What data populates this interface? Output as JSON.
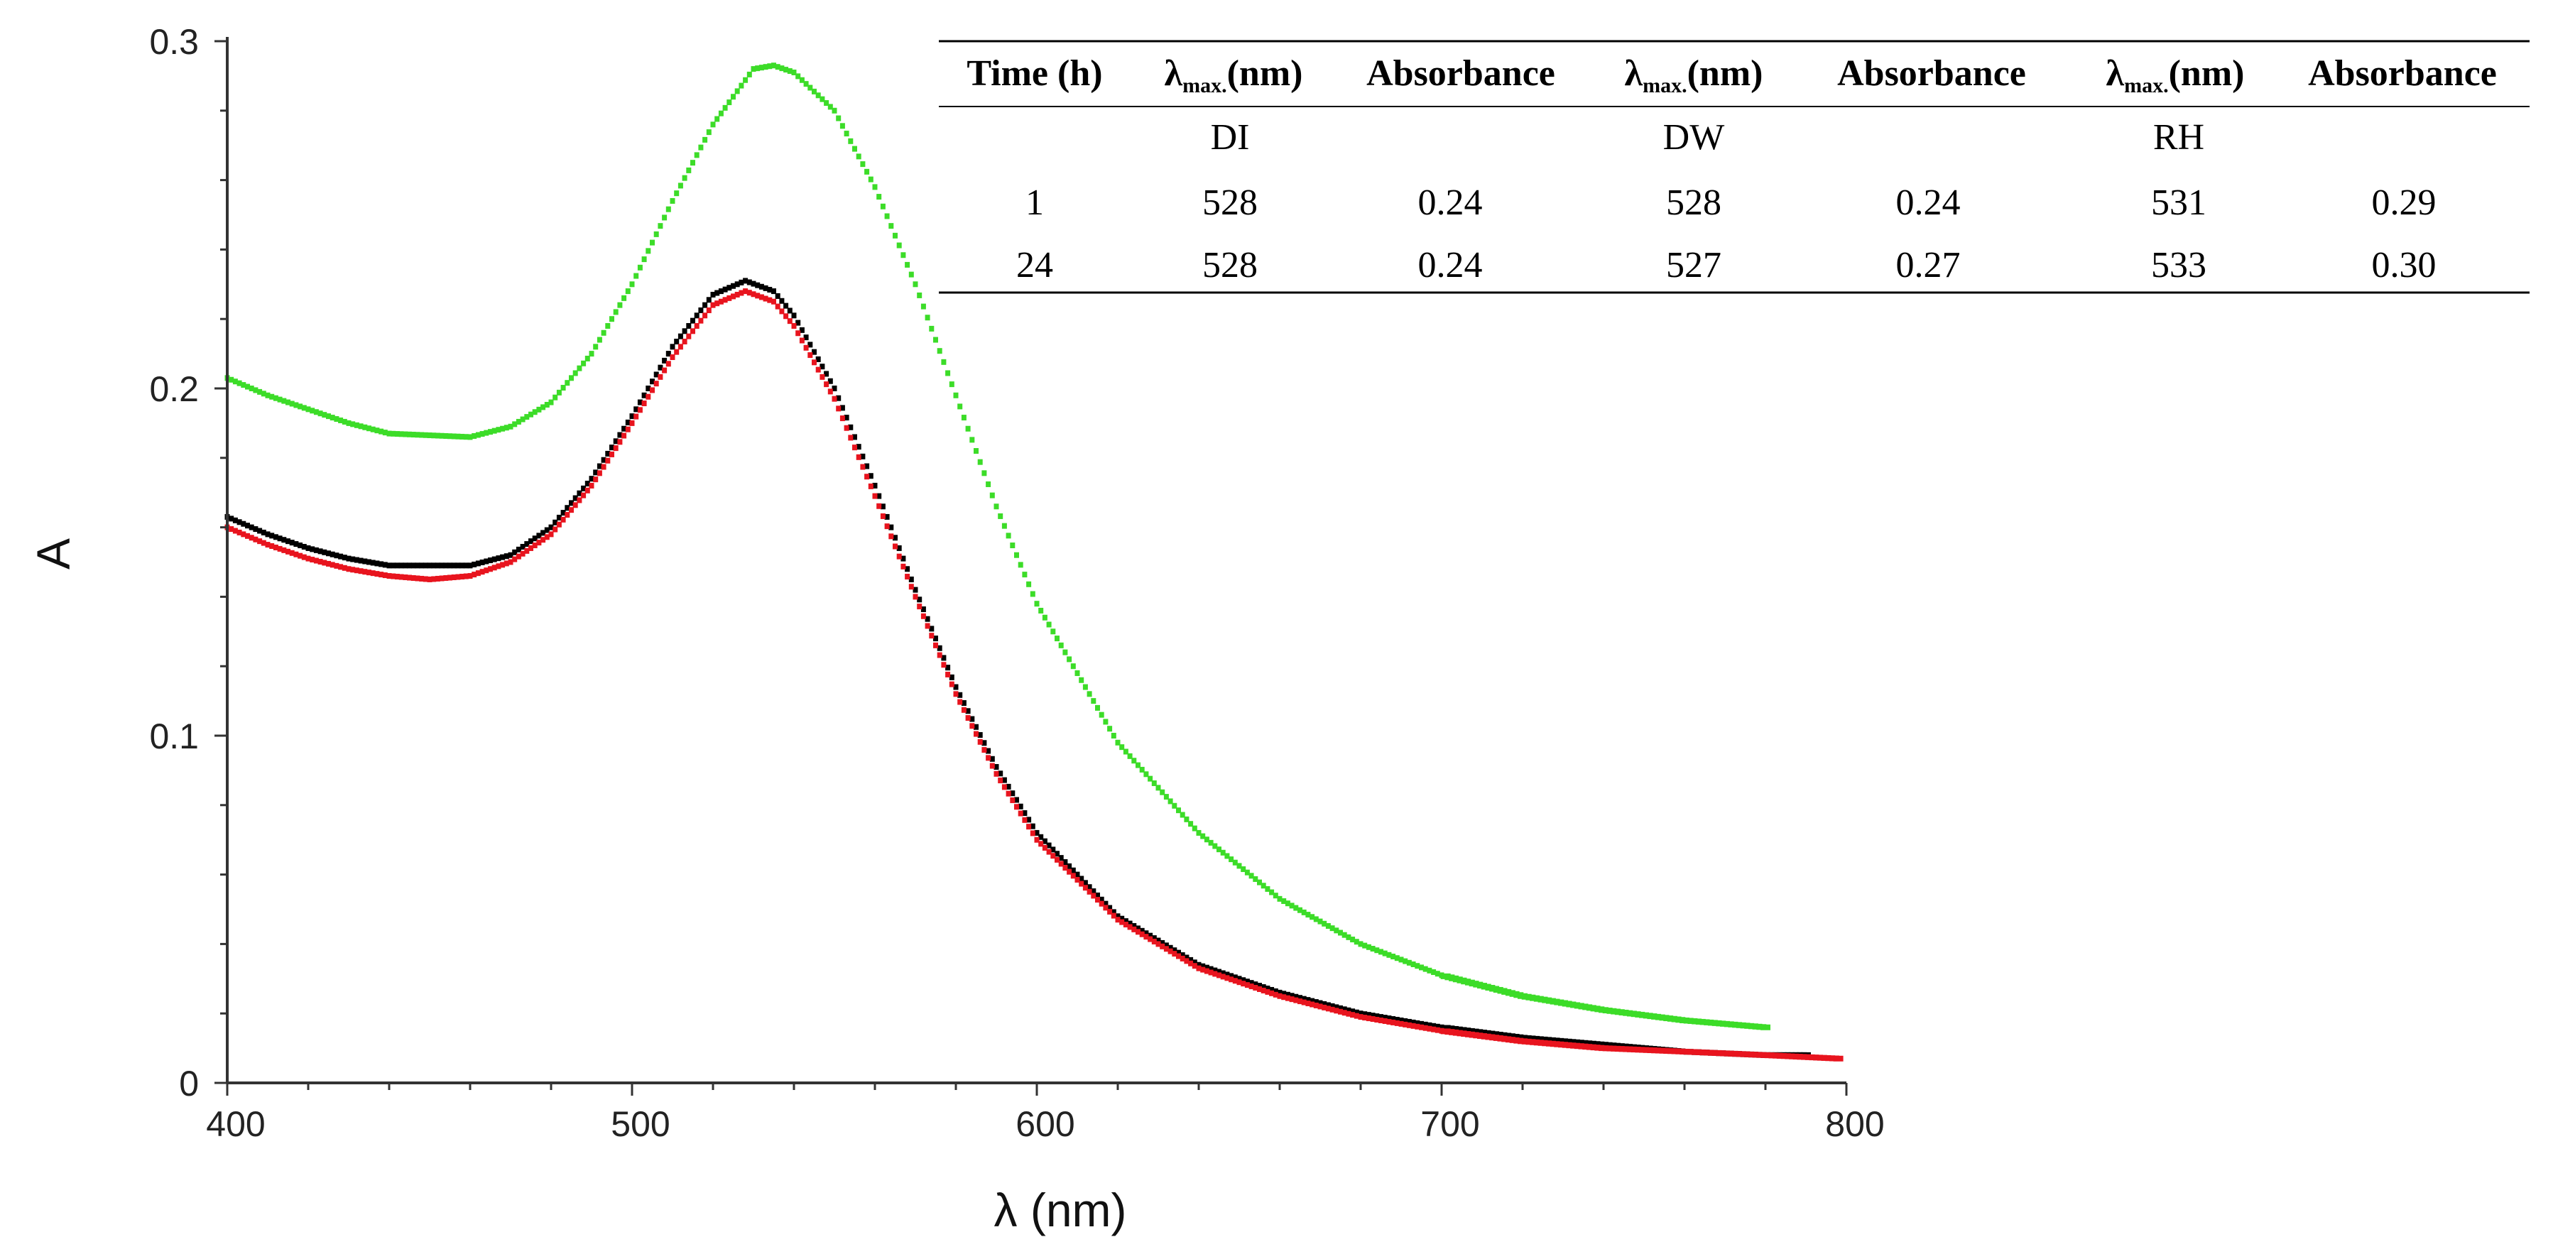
{
  "chart_data": {
    "type": "scatter",
    "xlabel": "λ (nm)",
    "ylabel": "A",
    "xlim": [
      400,
      800
    ],
    "ylim": [
      0,
      0.3
    ],
    "xticks": [
      400,
      500,
      600,
      700,
      800
    ],
    "xtick_labels": [
      "400",
      "500",
      "600",
      "700",
      "800"
    ],
    "yticks": [
      0,
      0.1,
      0.2,
      0.3
    ],
    "ytick_labels": [
      "0",
      "0.1",
      "0.2",
      "0.3"
    ],
    "grid": false,
    "series": [
      {
        "name": "green",
        "color": "#3cdc28",
        "x": [
          400,
          410,
          420,
          430,
          440,
          460,
          470,
          480,
          490,
          500,
          510,
          520,
          530,
          535,
          540,
          550,
          560,
          570,
          580,
          590,
          600,
          620,
          640,
          660,
          680,
          700,
          720,
          740,
          760,
          780
        ],
        "y": [
          0.203,
          0.198,
          0.194,
          0.19,
          0.187,
          0.186,
          0.189,
          0.196,
          0.21,
          0.23,
          0.254,
          0.276,
          0.292,
          0.293,
          0.291,
          0.28,
          0.258,
          0.23,
          0.198,
          0.166,
          0.138,
          0.098,
          0.072,
          0.053,
          0.04,
          0.031,
          0.025,
          0.021,
          0.018,
          0.016
        ]
      },
      {
        "name": "black",
        "color": "#000000",
        "x": [
          400,
          410,
          420,
          430,
          440,
          460,
          470,
          480,
          490,
          500,
          510,
          520,
          528,
          535,
          540,
          550,
          560,
          570,
          580,
          590,
          600,
          620,
          640,
          660,
          680,
          700,
          720,
          740,
          760,
          780,
          790
        ],
        "y": [
          0.163,
          0.158,
          0.154,
          0.151,
          0.149,
          0.149,
          0.152,
          0.16,
          0.174,
          0.192,
          0.212,
          0.227,
          0.231,
          0.228,
          0.221,
          0.2,
          0.172,
          0.142,
          0.114,
          0.091,
          0.072,
          0.048,
          0.034,
          0.026,
          0.02,
          0.016,
          0.013,
          0.011,
          0.009,
          0.008,
          0.008
        ]
      },
      {
        "name": "red",
        "color": "#e8141e",
        "x": [
          400,
          410,
          420,
          430,
          440,
          450,
          460,
          470,
          480,
          490,
          500,
          510,
          520,
          528,
          535,
          540,
          550,
          560,
          570,
          580,
          590,
          600,
          620,
          640,
          660,
          680,
          700,
          720,
          740,
          760,
          780,
          798
        ],
        "y": [
          0.16,
          0.155,
          0.151,
          0.148,
          0.146,
          0.145,
          0.146,
          0.15,
          0.158,
          0.172,
          0.19,
          0.209,
          0.224,
          0.228,
          0.225,
          0.218,
          0.197,
          0.169,
          0.14,
          0.112,
          0.089,
          0.07,
          0.047,
          0.033,
          0.025,
          0.019,
          0.015,
          0.012,
          0.01,
          0.009,
          0.008,
          0.007
        ]
      }
    ]
  },
  "table": {
    "headers": [
      "Time (h)",
      "λ",
      "(nm)",
      "Absorbance",
      "λ",
      "(nm)",
      "Absorbance",
      "λ",
      "(nm)",
      "Absorbance"
    ],
    "sub": "max.",
    "groups": [
      "DI",
      "DW",
      "RH"
    ],
    "rows": [
      [
        "1",
        "528",
        "0.24",
        "528",
        "0.24",
        "531",
        "0.29"
      ],
      [
        "24",
        "528",
        "0.24",
        "527",
        "0.27",
        "533",
        "0.30"
      ]
    ]
  }
}
